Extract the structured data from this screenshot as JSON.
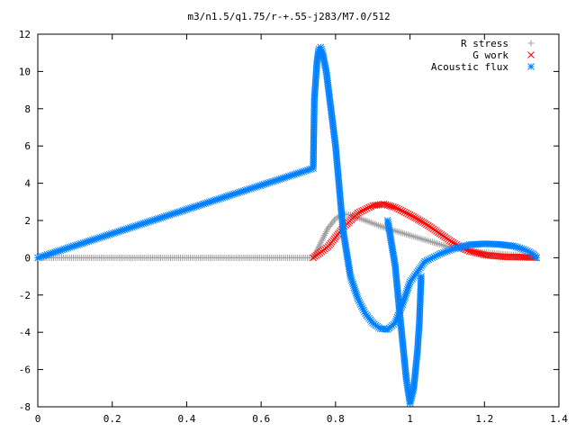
{
  "chart_data": {
    "type": "scatter",
    "title": "m3/n1.5/q1.75/r-+.55-j283/M7.0/512",
    "xlabel": "",
    "ylabel": "",
    "xlim": [
      0,
      1.4
    ],
    "ylim": [
      -8,
      12
    ],
    "x_ticks": [
      "0",
      "0.2",
      "0.4",
      "0.6",
      "0.8",
      "1",
      "1.2",
      "1.4"
    ],
    "y_ticks": [
      "12",
      "10",
      "8",
      "6",
      "4",
      "2",
      "0",
      "-2",
      "-4",
      "-6",
      "-8"
    ],
    "grid": false,
    "legend_position": "top-right",
    "series": [
      {
        "name": "R stress",
        "marker": "+",
        "color": "#a0a0a0",
        "x": [
          0.0,
          0.74,
          0.76,
          0.78,
          0.8,
          0.82,
          0.84,
          0.86,
          0.88,
          0.9,
          0.92,
          0.95,
          1.0,
          1.05,
          1.1,
          1.15,
          1.2,
          1.25,
          1.3,
          1.34
        ],
        "y": [
          0.0,
          0.0,
          0.8,
          1.6,
          2.1,
          2.35,
          2.3,
          2.15,
          2.0,
          1.85,
          1.7,
          1.5,
          1.2,
          0.9,
          0.6,
          0.4,
          0.28,
          0.2,
          0.12,
          0.02
        ]
      },
      {
        "name": "G work",
        "marker": "x",
        "color": "#ff0000",
        "x": [
          0.74,
          0.78,
          0.82,
          0.86,
          0.9,
          0.93,
          0.96,
          1.0,
          1.04,
          1.08,
          1.12,
          1.16,
          1.2,
          1.25,
          1.3,
          1.34
        ],
        "y": [
          0.0,
          0.6,
          1.6,
          2.4,
          2.8,
          2.88,
          2.7,
          2.3,
          1.85,
          1.3,
          0.75,
          0.35,
          0.15,
          0.05,
          0.03,
          0.0
        ]
      },
      {
        "name": "Acoustic flux",
        "marker": "*",
        "color": "#0080ff",
        "x": [
          0.0,
          0.74,
          0.743,
          0.75,
          0.755,
          0.76,
          0.765,
          0.775,
          0.8,
          0.82,
          0.84,
          0.86,
          0.88,
          0.9,
          0.92,
          0.94,
          0.96,
          0.98,
          1.0,
          1.04,
          1.08,
          1.12,
          1.16,
          1.2,
          1.24,
          1.28,
          1.31,
          1.33,
          1.34
        ],
        "y": [
          0.0,
          4.8,
          8.5,
          10.5,
          11.2,
          11.3,
          11.0,
          10.0,
          6.0,
          1.5,
          -1.0,
          -2.2,
          -3.0,
          -3.5,
          -3.8,
          -3.85,
          -3.5,
          -2.5,
          -1.3,
          -0.2,
          0.2,
          0.5,
          0.7,
          0.75,
          0.72,
          0.62,
          0.42,
          0.22,
          0.0
        ]
      },
      {
        "name": "",
        "marker": "*",
        "color": "#0080ff",
        "x": [
          0.94,
          0.96,
          0.97,
          0.98,
          0.99,
          1.0,
          1.01,
          1.02,
          1.025,
          1.03
        ],
        "y": [
          2.0,
          -0.4,
          -2.5,
          -4.5,
          -6.5,
          -7.8,
          -7.0,
          -5.0,
          -3.5,
          -1.0
        ]
      }
    ]
  }
}
